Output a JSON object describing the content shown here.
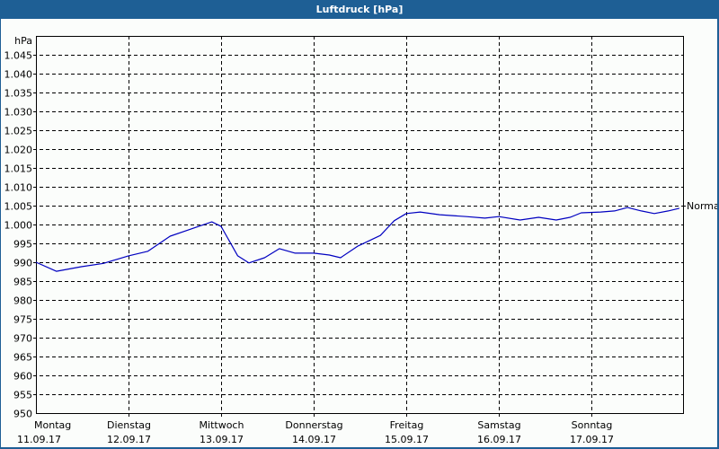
{
  "window": {
    "title": "Luftdruck [hPa]"
  },
  "colors": {
    "titlebar": "#1e5f95",
    "background": "#fbfdfb",
    "line": "#0000c0",
    "grid": "#000000"
  },
  "chart_data": {
    "type": "line",
    "title": "Luftdruck [hPa]",
    "xlabel": "",
    "ylabel": "hPa",
    "ylim": [
      950,
      1049
    ],
    "y_ticks": [
      "950",
      "955",
      "960",
      "965",
      "970",
      "975",
      "980",
      "985",
      "990",
      "995",
      "1.000",
      "1.005",
      "1.010",
      "1.015",
      "1.020",
      "1.025",
      "1.030",
      "1.035",
      "1.040",
      "1.045"
    ],
    "x_ticks": [
      {
        "day": "Montag",
        "date": "11.09.17"
      },
      {
        "day": "Dienstag",
        "date": "12.09.17"
      },
      {
        "day": "Mittwoch",
        "date": "13.09.17"
      },
      {
        "day": "Donnerstag",
        "date": "14.09.17"
      },
      {
        "day": "Freitag",
        "date": "15.09.17"
      },
      {
        "day": "Samstag",
        "date": "16.09.17"
      },
      {
        "day": "Sonntag",
        "date": "17.09.17"
      }
    ],
    "grid": true,
    "reference_label": "Normal",
    "series": [
      {
        "name": "Luftdruck",
        "x_days": [
          0,
          0.22,
          0.49,
          0.73,
          1.0,
          1.21,
          1.45,
          1.65,
          1.9,
          2.0,
          2.18,
          2.3,
          2.47,
          2.63,
          2.8,
          3.0,
          3.17,
          3.29,
          3.48,
          3.72,
          3.87,
          4.0,
          4.15,
          4.36,
          4.65,
          4.85,
          5.0,
          5.23,
          5.43,
          5.62,
          5.77,
          5.89,
          6.1,
          6.25,
          6.39,
          6.54,
          6.68,
          6.83,
          6.95
        ],
        "values": [
          990.0,
          987.6,
          988.8,
          989.7,
          991.7,
          992.9,
          996.9,
          998.6,
          1000.7,
          999.5,
          991.7,
          989.8,
          991.2,
          993.6,
          992.4,
          992.4,
          991.9,
          991.2,
          994.3,
          997.1,
          1001.0,
          1002.9,
          1003.3,
          1002.6,
          1002.1,
          1001.7,
          1002.1,
          1001.2,
          1001.9,
          1001.2,
          1001.9,
          1003.1,
          1003.3,
          1003.6,
          1004.5,
          1003.6,
          1002.9,
          1003.6,
          1004.3
        ]
      }
    ]
  }
}
